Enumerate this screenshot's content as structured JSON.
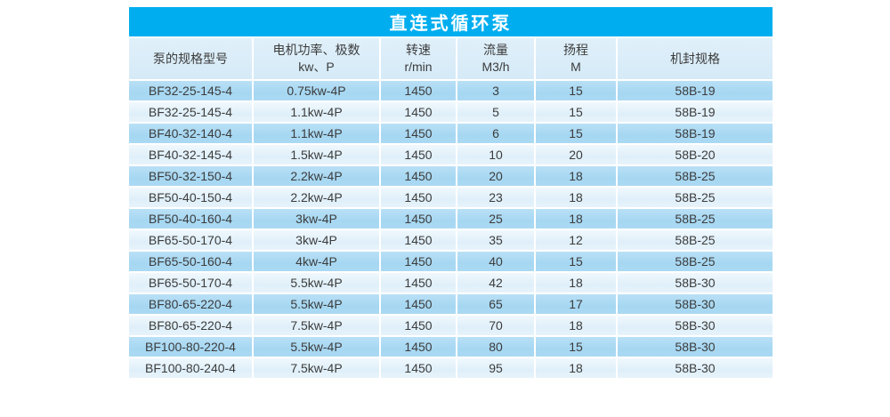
{
  "page": {
    "background": "#ffffff"
  },
  "table": {
    "title": "直连式循环泵",
    "colors": {
      "title_bg": "#00AEEF",
      "title_text": "#FFFFFF",
      "header_bg": "#D9ECF8",
      "row_dark_bg": "#ACDAF3",
      "row_light_bg": "#E4F2FB",
      "separator": "#FFFFFF",
      "text": "#3C3C3C"
    },
    "columns": [
      {
        "line1": "泵的规格型号",
        "line2": ""
      },
      {
        "line1": "电机功率、极数",
        "line2": "kw、P"
      },
      {
        "line1": "转速",
        "line2": "r/min"
      },
      {
        "line1": "流量",
        "line2": "M3/h"
      },
      {
        "line1": "扬程",
        "line2": "M"
      },
      {
        "line1": "机封规格",
        "line2": ""
      }
    ],
    "rows": [
      [
        "BF32-25-145-4",
        "0.75kw-4P",
        "1450",
        "3",
        "15",
        "58B-19"
      ],
      [
        "BF32-25-145-4",
        "1.1kw-4P",
        "1450",
        "5",
        "15",
        "58B-19"
      ],
      [
        "BF40-32-140-4",
        "1.1kw-4P",
        "1450",
        "6",
        "15",
        "58B-19"
      ],
      [
        "BF40-32-145-4",
        "1.5kw-4P",
        "1450",
        "10",
        "20",
        "58B-20"
      ],
      [
        "BF50-32-150-4",
        "2.2kw-4P",
        "1450",
        "20",
        "18",
        "58B-25"
      ],
      [
        "BF50-40-150-4",
        "2.2kw-4P",
        "1450",
        "23",
        "18",
        "58B-25"
      ],
      [
        "BF50-40-160-4",
        "3kw-4P",
        "1450",
        "25",
        "18",
        "58B-25"
      ],
      [
        "BF65-50-170-4",
        "3kw-4P",
        "1450",
        "35",
        "12",
        "58B-25"
      ],
      [
        "BF65-50-160-4",
        "4kw-4P",
        "1450",
        "40",
        "15",
        "58B-25"
      ],
      [
        "BF65-50-170-4",
        "5.5kw-4P",
        "1450",
        "42",
        "18",
        "58B-30"
      ],
      [
        "BF80-65-220-4",
        "5.5kw-4P",
        "1450",
        "65",
        "17",
        "58B-30"
      ],
      [
        "BF80-65-220-4",
        "7.5kw-4P",
        "1450",
        "70",
        "18",
        "58B-30"
      ],
      [
        "BF100-80-220-4",
        "5.5kw-4P",
        "1450",
        "80",
        "15",
        "58B-30"
      ],
      [
        "BF100-80-240-4",
        "7.5kw-4P",
        "1450",
        "95",
        "18",
        "58B-30"
      ]
    ]
  }
}
